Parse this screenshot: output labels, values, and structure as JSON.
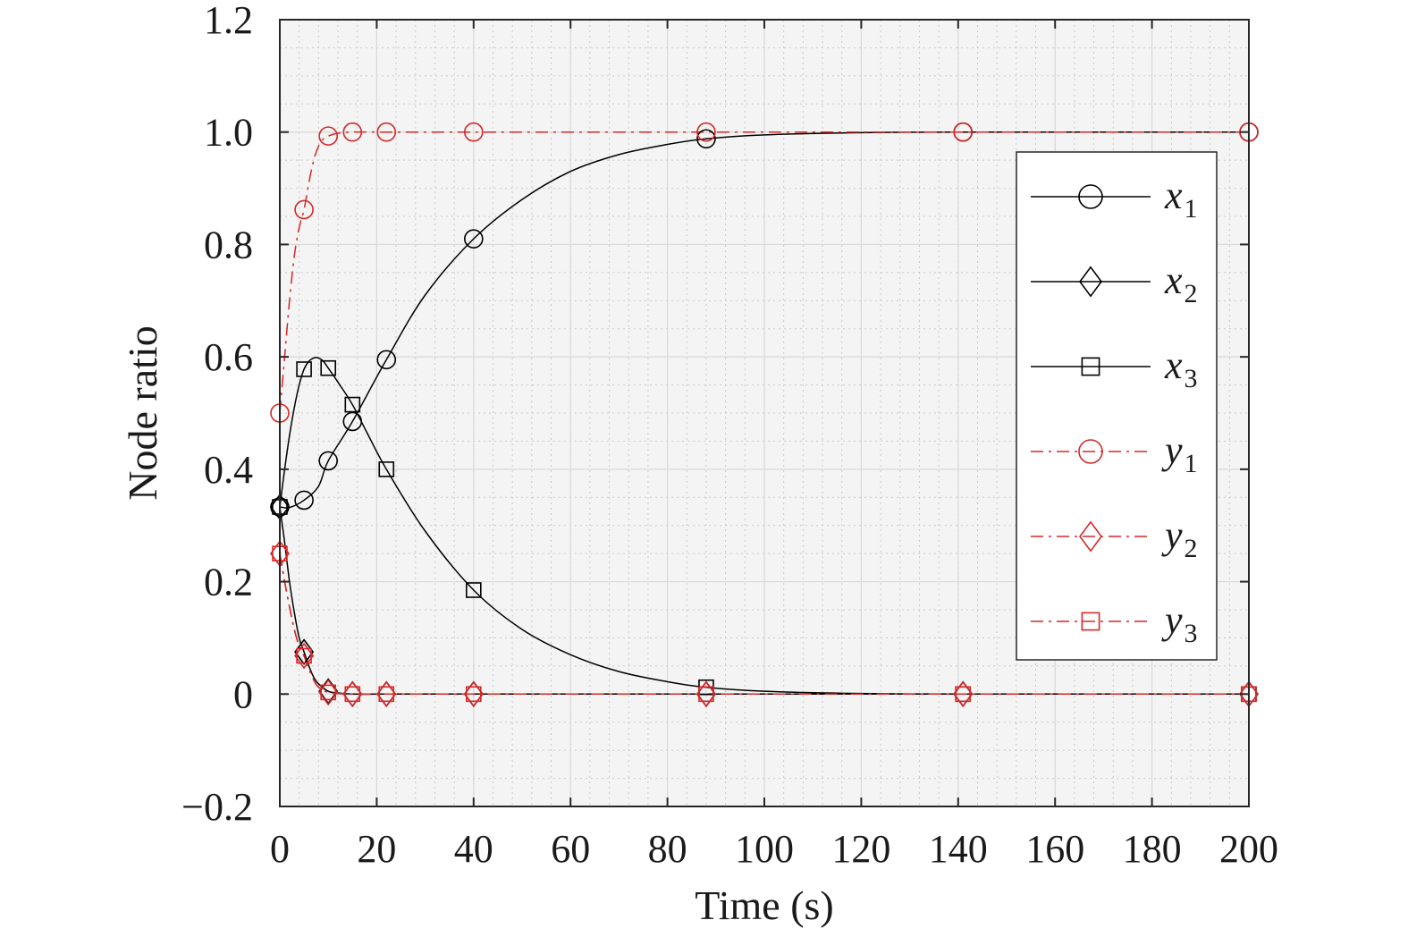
{
  "chart_data": {
    "type": "line",
    "xlabel": "Time (s)",
    "ylabel": "Node ratio",
    "xlim": [
      0,
      200
    ],
    "ylim": [
      -0.2,
      1.2
    ],
    "xticks": [
      0,
      20,
      40,
      60,
      80,
      100,
      120,
      140,
      160,
      180,
      200
    ],
    "xtick_labels": [
      "0",
      "20",
      "40",
      "60",
      "80",
      "100",
      "120",
      "140",
      "160",
      "180",
      "200"
    ],
    "yticks": [
      -0.2,
      0,
      0.2,
      0.4,
      0.6,
      0.8,
      1.0,
      1.2
    ],
    "ytick_labels": [
      "−0.2",
      "0",
      "0.2",
      "0.4",
      "0.6",
      "0.8",
      "1.0",
      "1.2"
    ],
    "grid": true,
    "minor_grid": true,
    "legend_position": "right",
    "series": [
      {
        "name": "x1",
        "label_var": "x",
        "label_sub": "1",
        "color": "#000000",
        "line_style": "solid",
        "marker": "circle",
        "x": [
          0,
          2,
          5,
          8,
          10,
          15,
          22,
          30,
          40,
          50,
          60,
          70,
          80,
          88,
          100,
          120,
          140,
          170,
          200
        ],
        "y": [
          0.333,
          0.332,
          0.345,
          0.37,
          0.415,
          0.485,
          0.595,
          0.71,
          0.81,
          0.88,
          0.93,
          0.96,
          0.978,
          0.988,
          0.995,
          0.999,
          1.0,
          1.0,
          1.0
        ],
        "marker_x": [
          0,
          5,
          10,
          15,
          22,
          40,
          88,
          141,
          200
        ],
        "marker_y": [
          0.333,
          0.345,
          0.415,
          0.485,
          0.595,
          0.81,
          0.988,
          1.0,
          1.0
        ]
      },
      {
        "name": "x2",
        "label_var": "x",
        "label_sub": "2",
        "color": "#000000",
        "line_style": "solid",
        "marker": "diamond",
        "x": [
          0,
          1,
          2,
          3,
          4,
          5,
          6,
          7,
          8,
          10,
          12,
          15,
          22,
          40,
          88,
          141,
          200
        ],
        "y": [
          0.333,
          0.27,
          0.2,
          0.145,
          0.1,
          0.075,
          0.05,
          0.03,
          0.018,
          0.005,
          0.002,
          0.0,
          0.0,
          0.0,
          0.0,
          0.0,
          0.0
        ],
        "marker_x": [
          0,
          5,
          10,
          15,
          22,
          40,
          88,
          141,
          200
        ],
        "marker_y": [
          0.333,
          0.075,
          0.005,
          0.0,
          0.0,
          0.0,
          0.0,
          0.0,
          0.0
        ]
      },
      {
        "name": "x3",
        "label_var": "x",
        "label_sub": "3",
        "color": "#000000",
        "line_style": "solid",
        "marker": "square",
        "x": [
          0,
          1,
          2,
          3,
          4,
          5,
          6,
          7,
          8,
          9,
          10,
          12,
          15,
          18,
          22,
          30,
          40,
          50,
          60,
          70,
          80,
          88,
          100,
          120,
          140,
          170,
          200
        ],
        "y": [
          0.333,
          0.4,
          0.46,
          0.51,
          0.55,
          0.578,
          0.592,
          0.598,
          0.598,
          0.592,
          0.58,
          0.555,
          0.515,
          0.465,
          0.4,
          0.29,
          0.185,
          0.115,
          0.07,
          0.04,
          0.022,
          0.012,
          0.005,
          0.001,
          0.0,
          0.0,
          0.0
        ],
        "marker_x": [
          0,
          5,
          10,
          15,
          22,
          40,
          88,
          141,
          200
        ],
        "marker_y": [
          0.333,
          0.578,
          0.58,
          0.515,
          0.4,
          0.185,
          0.012,
          0.0,
          0.0
        ]
      },
      {
        "name": "y1",
        "label_var": "y",
        "label_sub": "1",
        "color": "#d62728",
        "line_style": "dashdot",
        "marker": "circle",
        "x": [
          0,
          1,
          2,
          3,
          4,
          5,
          6,
          7,
          8,
          9,
          10,
          12,
          15,
          22,
          40,
          88,
          141,
          200
        ],
        "y": [
          0.5,
          0.6,
          0.7,
          0.78,
          0.83,
          0.862,
          0.91,
          0.95,
          0.975,
          0.988,
          0.993,
          0.998,
          1.0,
          1.0,
          1.0,
          1.0,
          1.0,
          1.0
        ],
        "marker_x": [
          0,
          5,
          10,
          15,
          22,
          40,
          88,
          141,
          200
        ],
        "marker_y": [
          0.5,
          0.862,
          0.993,
          1.0,
          1.0,
          1.0,
          1.0,
          1.0,
          1.0
        ]
      },
      {
        "name": "y2",
        "label_var": "y",
        "label_sub": "2",
        "color": "#d62728",
        "line_style": "dashdot",
        "marker": "diamond",
        "x": [
          0,
          1,
          2,
          3,
          4,
          5,
          6,
          7,
          8,
          10,
          12,
          15,
          22,
          40,
          88,
          141,
          200
        ],
        "y": [
          0.25,
          0.2,
          0.155,
          0.115,
          0.085,
          0.068,
          0.045,
          0.025,
          0.012,
          0.003,
          0.001,
          0.0,
          0.0,
          0.0,
          0.0,
          0.0,
          0.0
        ],
        "marker_x": [
          0,
          5,
          10,
          15,
          22,
          40,
          88,
          141,
          200
        ],
        "marker_y": [
          0.25,
          0.068,
          0.003,
          0.0,
          0.0,
          0.0,
          0.0,
          0.0,
          0.0
        ]
      },
      {
        "name": "y3",
        "label_var": "y",
        "label_sub": "3",
        "color": "#d62728",
        "line_style": "dashdot",
        "marker": "square",
        "x": [
          0,
          1,
          2,
          3,
          4,
          5,
          6,
          7,
          8,
          10,
          12,
          15,
          22,
          40,
          88,
          141,
          200
        ],
        "y": [
          0.25,
          0.2,
          0.155,
          0.115,
          0.085,
          0.068,
          0.045,
          0.025,
          0.012,
          0.003,
          0.001,
          0.0,
          0.0,
          0.0,
          0.0,
          0.0,
          0.0
        ],
        "marker_x": [
          0,
          5,
          10,
          15,
          22,
          40,
          88,
          141,
          200
        ],
        "marker_y": [
          0.25,
          0.068,
          0.003,
          0.0,
          0.0,
          0.0,
          0.0,
          0.0,
          0.0
        ]
      }
    ]
  }
}
